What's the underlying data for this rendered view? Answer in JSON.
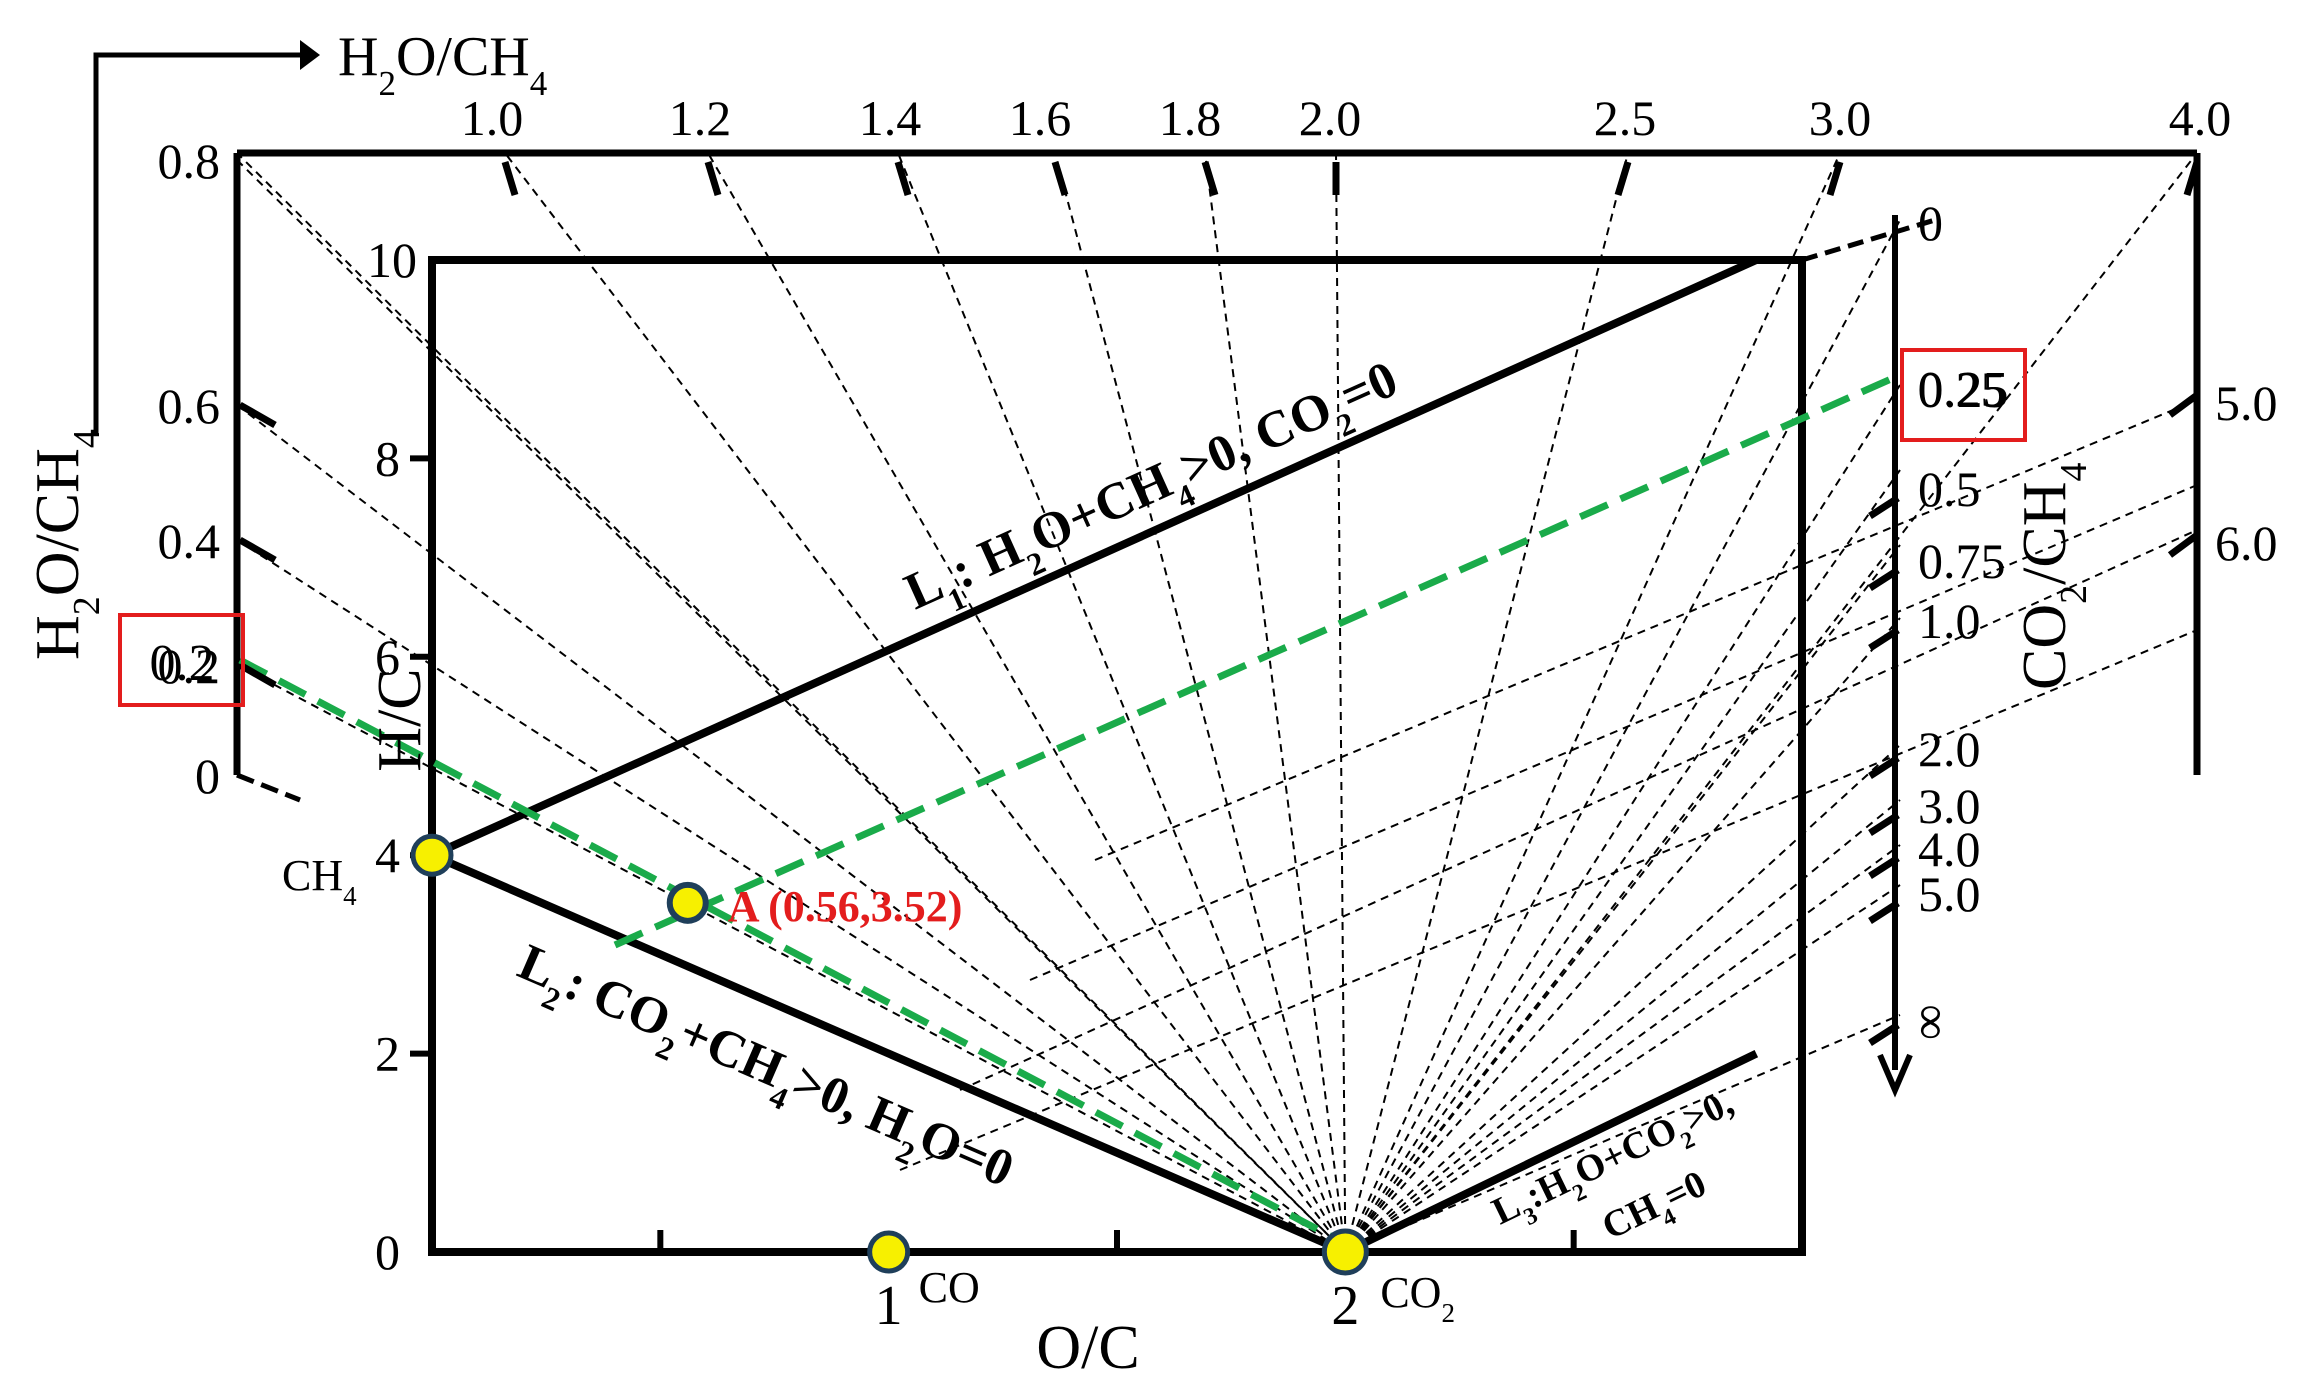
{
  "chart_data": {
    "type": "scatter",
    "xlabel": "O/C",
    "ylabel": "H/C",
    "xlim": [
      0,
      3
    ],
    "ylim": [
      0,
      10
    ],
    "x_ticks": [
      {
        "v": 1,
        "label": "1"
      },
      {
        "v": 2,
        "label": "2"
      }
    ],
    "y_ticks": [
      {
        "v": 0,
        "label": "0"
      },
      {
        "v": 2,
        "label": "2"
      },
      {
        "v": 4,
        "label": "4"
      },
      {
        "v": 6,
        "label": "6"
      },
      {
        "v": 8,
        "label": "8"
      },
      {
        "v": 10,
        "label": "10"
      }
    ],
    "points": [
      {
        "name": "CH4",
        "label": "CH",
        "sub": "4",
        "x": 0,
        "y": 4
      },
      {
        "name": "CO",
        "label": "CO",
        "sub": "",
        "x": 1,
        "y": 0
      },
      {
        "name": "CO2",
        "label": "CO",
        "sub": "2",
        "x": 2,
        "y": 0
      }
    ],
    "point_A": {
      "label": "A (0.56,3.52)",
      "x": 0.56,
      "y": 3.52
    },
    "lines": [
      {
        "name": "L1",
        "x": [
          0,
          2.9
        ],
        "y": [
          4,
          10
        ],
        "parts": [
          [
            "L",
            "normal"
          ],
          [
            "1",
            "sub"
          ],
          [
            ": H",
            "normal"
          ],
          [
            "2",
            "sub"
          ],
          [
            "O+CH",
            "normal"
          ],
          [
            "4",
            "sub"
          ],
          [
            ">0, CO",
            "normal"
          ],
          [
            "2",
            "sub"
          ],
          [
            "=0",
            "normal"
          ]
        ]
      },
      {
        "name": "L2",
        "x": [
          0,
          2
        ],
        "y": [
          4,
          0
        ],
        "parts": [
          [
            "L",
            "normal"
          ],
          [
            "2",
            "sub"
          ],
          [
            ": CO",
            "normal"
          ],
          [
            "2",
            "sub"
          ],
          [
            "+CH",
            "normal"
          ],
          [
            "4",
            "sub"
          ],
          [
            ">0, H",
            "normal"
          ],
          [
            "2",
            "sub"
          ],
          [
            "O=0",
            "normal"
          ]
        ]
      },
      {
        "name": "L3",
        "x": [
          2,
          2.9
        ],
        "y": [
          0,
          2
        ],
        "parts": [
          [
            "L",
            "normal"
          ],
          [
            "3",
            "sub"
          ],
          [
            ":H",
            "normal"
          ],
          [
            "2",
            "sub"
          ],
          [
            "O+CO",
            "normal"
          ],
          [
            "2",
            "sub"
          ],
          [
            ">0,",
            "normal"
          ]
        ],
        "parts2": [
          [
            "CH",
            "normal"
          ],
          [
            "4",
            "sub"
          ],
          [
            "=0",
            "normal"
          ]
        ]
      }
    ],
    "h2o_ch4_axis": {
      "label_parts": [
        [
          "H",
          "normal"
        ],
        [
          "2",
          "sub"
        ],
        [
          "O/CH",
          "normal"
        ],
        [
          "4",
          "sub"
        ]
      ],
      "arrow_label_parts": [
        [
          "H",
          "normal"
        ],
        [
          "2",
          "sub"
        ],
        [
          "O/CH",
          "normal"
        ],
        [
          "4",
          "sub"
        ]
      ],
      "top_ticks": [
        "1.0",
        "1.2",
        "1.4",
        "1.6",
        "1.8",
        "2.0",
        "2.5",
        "3.0",
        "4.0"
      ],
      "top_tick_values": [
        1.0,
        1.2,
        1.4,
        1.6,
        1.8,
        2.0,
        2.5,
        3.0,
        4.0
      ],
      "left_ticks": [
        "0.8",
        "0.6",
        "0.4",
        "0.2",
        "0"
      ],
      "left_tick_values": [
        0.8,
        0.6,
        0.4,
        0.2,
        0
      ]
    },
    "co2_ch4_axis": {
      "label_parts": [
        [
          "CO",
          "normal"
        ],
        [
          "2",
          "sub"
        ],
        [
          "/CH",
          "normal"
        ],
        [
          "4",
          "sub"
        ]
      ],
      "ticks": [
        "0",
        "0.25",
        "0.5",
        "0.75",
        "1.0",
        "2.0",
        "3.0",
        "4.0",
        "5.0",
        "∞"
      ],
      "tick_values": [
        0,
        0.25,
        0.5,
        0.75,
        1.0,
        2.0,
        3.0,
        4.0,
        5.0,
        null
      ],
      "outer_ticks": [
        "5.0",
        "6.0"
      ],
      "outer_tick_values": [
        5.0,
        6.0
      ]
    },
    "highlighted": {
      "h2o_ch4": "0.2",
      "co2_ch4": "0.25"
    },
    "colors": {
      "axes": "#000000",
      "guide": "#1aab4a",
      "highlight_box": "#e31d1d",
      "marker_fill": "#f7f000",
      "marker_edge": "#1f3f5a"
    }
  }
}
